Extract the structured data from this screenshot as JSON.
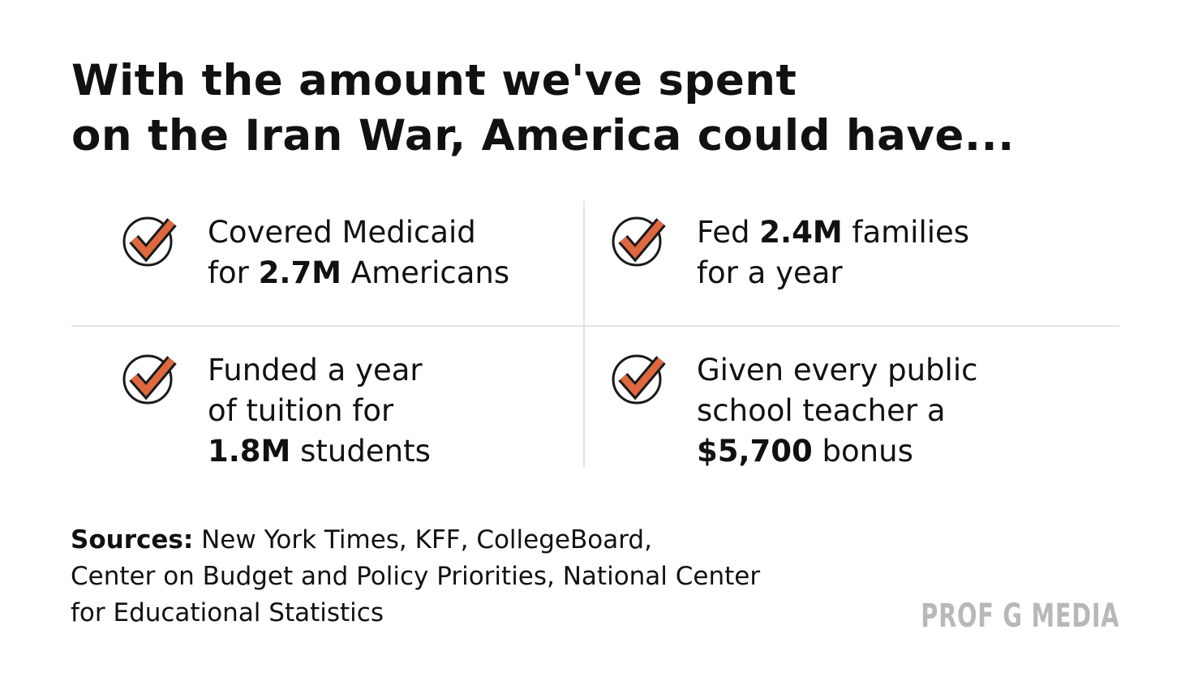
{
  "title": {
    "lines": [
      "With the amount we've spent",
      "on the Iran War, America could have..."
    ]
  },
  "items": [
    {
      "lines": [
        [
          {
            "text": "Covered Medicaid"
          }
        ],
        [
          {
            "text": "for "
          },
          {
            "text": "2.7M",
            "bold": true
          },
          {
            "text": " Americans"
          }
        ]
      ]
    },
    {
      "lines": [
        [
          {
            "text": "Fed "
          },
          {
            "text": "2.4M",
            "bold": true
          },
          {
            "text": " families"
          }
        ],
        [
          {
            "text": "for a year"
          }
        ]
      ]
    },
    {
      "lines": [
        [
          {
            "text": "Funded a year"
          }
        ],
        [
          {
            "text": "of tuition for"
          }
        ],
        [
          {
            "text": "1.8M",
            "bold": true
          },
          {
            "text": " students"
          }
        ]
      ]
    },
    {
      "lines": [
        [
          {
            "text": "Given every public"
          }
        ],
        [
          {
            "text": "school teacher a"
          }
        ],
        [
          {
            "text": "$5,700",
            "bold": true
          },
          {
            "text": " bonus"
          }
        ]
      ]
    }
  ],
  "sources": {
    "label": "Sources:",
    "lines": [
      "New York Times, KFF, CollegeBoard,",
      "Center on Budget and Policy Priorities, National Center",
      "for Educational Statistics"
    ]
  },
  "logo": "PROF G MEDIA"
}
